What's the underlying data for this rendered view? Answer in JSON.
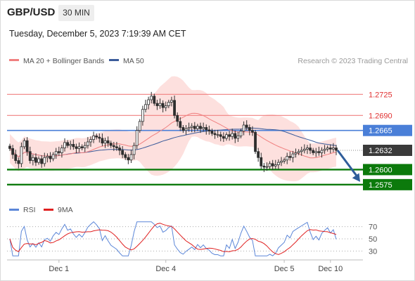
{
  "header": {
    "symbol": "GBP/USD",
    "timeframe": "30 MIN",
    "timestamp": "Tuesday, December 5, 2023 7:19:39 AM CET"
  },
  "legend": {
    "ma20_label": "MA 20 + Bollinger Bands",
    "ma50_label": "MA 50",
    "credit": "Research © 2023 Trading Central"
  },
  "rsi_legend": {
    "rsi_label": "RSI",
    "ma_label": "9MA"
  },
  "colors": {
    "resistance": "#f08080",
    "pivot": "#4a7fd8",
    "support": "#0c7a0c",
    "last": "#3a3a3a",
    "bollinger_fill": "#fde0de",
    "ma20": "#f08080",
    "ma50": "#3b5b9a",
    "candle": "#2e2e2e",
    "arrow": "#2f5d9a",
    "rsi": "#5b86d8",
    "rsi_ma": "#e02020"
  },
  "chart_data": {
    "type": "candlestick",
    "ylim": [
      1.2555,
      1.2765
    ],
    "levels": [
      {
        "value": 1.2725,
        "label": "1.2725",
        "kind": "resistance"
      },
      {
        "value": 1.269,
        "label": "1.2690",
        "kind": "resistance"
      },
      {
        "value": 1.2665,
        "label": "1.2665",
        "kind": "pivot"
      },
      {
        "value": 1.2632,
        "label": "1.2632",
        "kind": "last"
      },
      {
        "value": 1.26,
        "label": "1.2600",
        "kind": "support"
      },
      {
        "value": 1.2575,
        "label": "1.2575",
        "kind": "support"
      }
    ],
    "x_ticks": [
      {
        "index": 17,
        "label": "Dec 1"
      },
      {
        "index": 54,
        "label": "Dec 4"
      },
      {
        "index": 95,
        "label": "Dec 5"
      },
      {
        "index": 111,
        "label": "Dec 10"
      }
    ],
    "close": [
      1.2635,
      1.2625,
      1.2615,
      1.261,
      1.2638,
      1.2648,
      1.263,
      1.2615,
      1.262,
      1.2612,
      1.2618,
      1.261,
      1.262,
      1.2622,
      1.2618,
      1.2625,
      1.263,
      1.2628,
      1.2636,
      1.2645,
      1.264,
      1.2642,
      1.2638,
      1.2635,
      1.2638,
      1.2636,
      1.264,
      1.2646,
      1.265,
      1.2656,
      1.2654,
      1.2652,
      1.2644,
      1.2648,
      1.2644,
      1.264,
      1.2638,
      1.2636,
      1.2632,
      1.2625,
      1.262,
      1.2616,
      1.2625,
      1.264,
      1.2665,
      1.268,
      1.27,
      1.2708,
      1.2716,
      1.2722,
      1.271,
      1.2706,
      1.271,
      1.2703,
      1.2706,
      1.2712,
      1.2715,
      1.269,
      1.268,
      1.267,
      1.2665,
      1.2668,
      1.267,
      1.2672,
      1.2668,
      1.2672,
      1.2668,
      1.267,
      1.2666,
      1.2664,
      1.266,
      1.2658,
      1.2658,
      1.2655,
      1.2652,
      1.2658,
      1.2655,
      1.266,
      1.2652,
      1.2656,
      1.2664,
      1.2674,
      1.267,
      1.2665,
      1.2662,
      1.263,
      1.262,
      1.2606,
      1.2604,
      1.2605,
      1.261,
      1.2606,
      1.2608,
      1.2612,
      1.2614,
      1.2616,
      1.2622,
      1.262,
      1.2626,
      1.2628,
      1.263,
      1.2632,
      1.2634,
      1.2636,
      1.2632,
      1.2628,
      1.263,
      1.2628,
      1.2632,
      1.2634,
      1.2636,
      1.2634,
      1.2636,
      1.2632
    ],
    "forecast": {
      "from": 1.2632,
      "to": 1.2575
    },
    "rsi": {
      "levels": [
        70,
        50,
        30
      ],
      "ylim": [
        20,
        80
      ]
    }
  }
}
